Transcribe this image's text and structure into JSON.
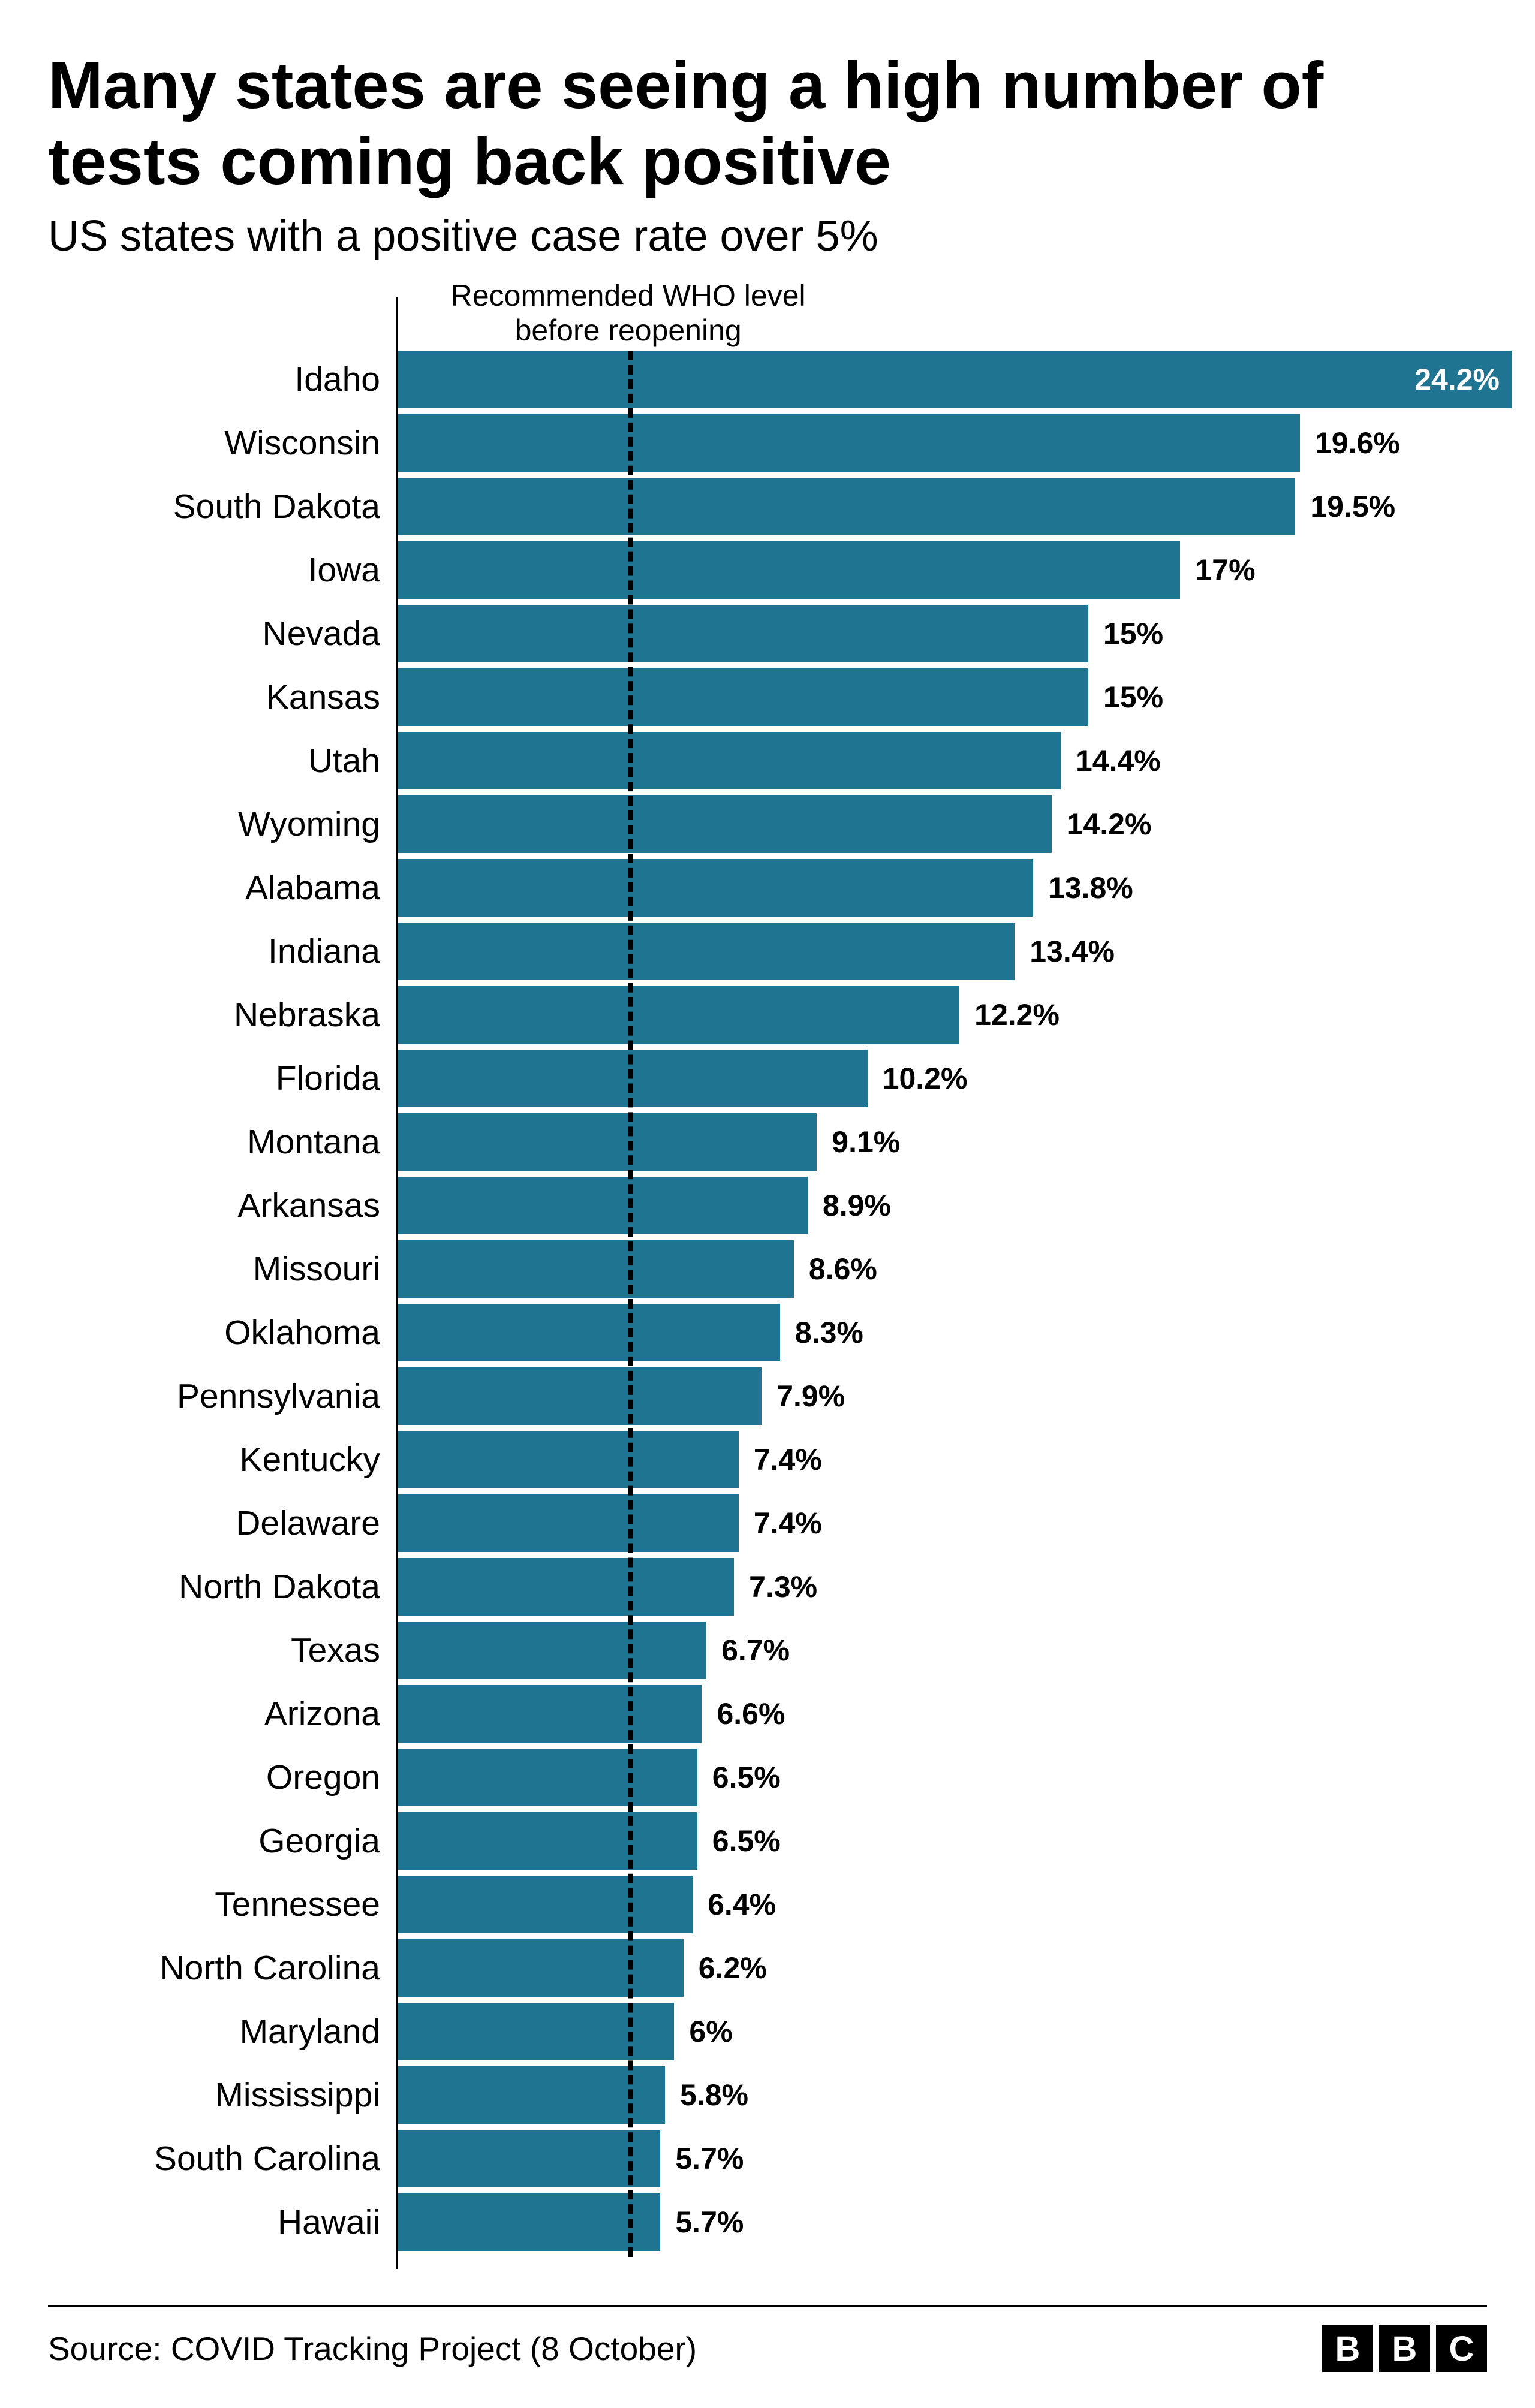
{
  "title": "Many states are seeing a high number of tests coming back positive",
  "subtitle": "US states with a positive case rate over 5%",
  "annotation": "Recommended WHO level before reopening",
  "source": "Source: COVID Tracking Project (8 October)",
  "logo_letters": [
    "B",
    "B",
    "C"
  ],
  "chart": {
    "type": "bar",
    "bar_color": "#1f7591",
    "text_color_inside": "#ffffff",
    "text_color_outside": "#000000",
    "background_color": "#ffffff",
    "xmax": 24.5,
    "who_level": 5.0,
    "label_inside_threshold": 20.0,
    "data": [
      {
        "state": "Idaho",
        "value": 24.2,
        "label": "24.2%"
      },
      {
        "state": "Wisconsin",
        "value": 19.6,
        "label": "19.6%"
      },
      {
        "state": "South Dakota",
        "value": 19.5,
        "label": "19.5%"
      },
      {
        "state": "Iowa",
        "value": 17,
        "label": "17%"
      },
      {
        "state": "Nevada",
        "value": 15,
        "label": "15%"
      },
      {
        "state": "Kansas",
        "value": 15,
        "label": "15%"
      },
      {
        "state": "Utah",
        "value": 14.4,
        "label": "14.4%"
      },
      {
        "state": "Wyoming",
        "value": 14.2,
        "label": "14.2%"
      },
      {
        "state": "Alabama",
        "value": 13.8,
        "label": "13.8%"
      },
      {
        "state": "Indiana",
        "value": 13.4,
        "label": "13.4%"
      },
      {
        "state": "Nebraska",
        "value": 12.2,
        "label": "12.2%"
      },
      {
        "state": "Florida",
        "value": 10.2,
        "label": "10.2%"
      },
      {
        "state": "Montana",
        "value": 9.1,
        "label": "9.1%"
      },
      {
        "state": "Arkansas",
        "value": 8.9,
        "label": "8.9%"
      },
      {
        "state": "Missouri",
        "value": 8.6,
        "label": "8.6%"
      },
      {
        "state": "Oklahoma",
        "value": 8.3,
        "label": "8.3%"
      },
      {
        "state": "Pennsylvania",
        "value": 7.9,
        "label": "7.9%"
      },
      {
        "state": "Kentucky",
        "value": 7.4,
        "label": "7.4%"
      },
      {
        "state": "Delaware",
        "value": 7.4,
        "label": "7.4%"
      },
      {
        "state": "North Dakota",
        "value": 7.3,
        "label": "7.3%"
      },
      {
        "state": "Texas",
        "value": 6.7,
        "label": "6.7%"
      },
      {
        "state": "Arizona",
        "value": 6.6,
        "label": "6.6%"
      },
      {
        "state": "Oregon",
        "value": 6.5,
        "label": "6.5%"
      },
      {
        "state": "Georgia",
        "value": 6.5,
        "label": "6.5%"
      },
      {
        "state": "Tennessee",
        "value": 6.4,
        "label": "6.4%"
      },
      {
        "state": "North Carolina",
        "value": 6.2,
        "label": "6.2%"
      },
      {
        "state": "Maryland",
        "value": 6,
        "label": "6%"
      },
      {
        "state": "Mississippi",
        "value": 5.8,
        "label": "5.8%"
      },
      {
        "state": "South Carolina",
        "value": 5.7,
        "label": "5.7%"
      },
      {
        "state": "Hawaii",
        "value": 5.7,
        "label": "5.7%"
      }
    ]
  }
}
